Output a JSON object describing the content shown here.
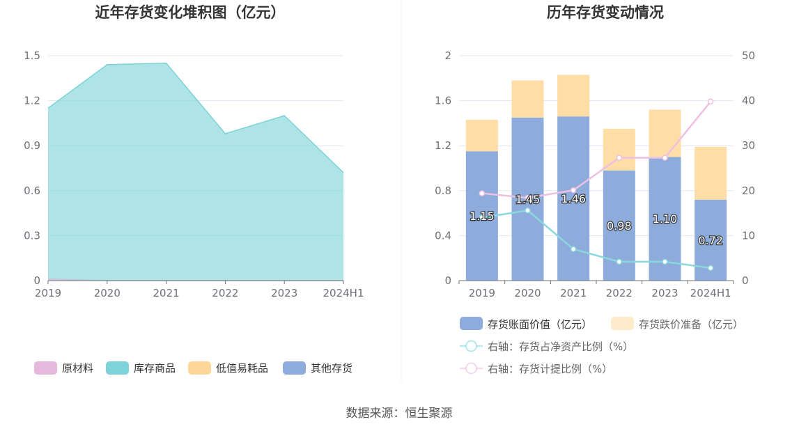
{
  "source_text": "数据来源：恒生聚源",
  "colors": {
    "raw": "#e6b9dc",
    "finished": "#7dd3d7",
    "consumable": "#fdd798",
    "other": "#8dacdb",
    "book": "#8dacdb",
    "reserve": "#fedea6",
    "line_net": "#8ad8dc",
    "line_ratio": "#edc0e3",
    "grid": "#e0e6f1",
    "axis": "#6e7079"
  },
  "chart_data": [
    {
      "type": "area",
      "title": "近年存货变化堆积图（亿元）",
      "categories": [
        "2019",
        "2020",
        "2021",
        "2022",
        "2023",
        "2024H1"
      ],
      "ylim": [
        0,
        1.5
      ],
      "yticks": [
        "0",
        "0.3",
        "0.6",
        "0.9",
        "1.2",
        "1.5"
      ],
      "series": [
        {
          "name": "原材料",
          "values": [
            0.01,
            0.0,
            0.0,
            0.0,
            0.0,
            0.0
          ]
        },
        {
          "name": "库存商品",
          "values": [
            1.14,
            1.44,
            1.45,
            0.98,
            1.1,
            0.72
          ]
        },
        {
          "name": "低值易耗品",
          "values": [
            0,
            0,
            0,
            0,
            0,
            0
          ]
        },
        {
          "name": "其他存货",
          "values": [
            0,
            0,
            0,
            0,
            0,
            0
          ]
        }
      ],
      "legend": [
        "原材料",
        "库存商品",
        "低值易耗品",
        "其他存货"
      ],
      "grid": true,
      "legend_position": "bottom"
    },
    {
      "type": "bar",
      "title": "历年存货变动情况",
      "categories": [
        "2019",
        "2020",
        "2021",
        "2022",
        "2023",
        "2024H1"
      ],
      "ylim": [
        0,
        2
      ],
      "yticks": [
        "0",
        "0.4",
        "0.8",
        "1.2",
        "1.6",
        "2"
      ],
      "y2lim": [
        0,
        50
      ],
      "y2ticks": [
        "0",
        "10",
        "20",
        "30",
        "40",
        "50"
      ],
      "series": [
        {
          "name": "存货账面价值（亿元）",
          "type": "bar",
          "values": [
            1.15,
            1.45,
            1.46,
            0.98,
            1.1,
            0.72
          ],
          "labels": [
            "1.15",
            "1.45",
            "1.46",
            "0.98",
            "1.10",
            "0.72"
          ]
        },
        {
          "name": "存货跌价准备（亿元）",
          "type": "bar",
          "values": [
            0.28,
            0.33,
            0.37,
            0.37,
            0.42,
            0.47
          ]
        },
        {
          "name": "右轴：存货占净资产比例（%）",
          "type": "line",
          "axis": "right",
          "values": [
            14.0,
            15.6,
            7.0,
            4.2,
            4.2,
            2.8
          ]
        },
        {
          "name": "右轴：存货计提比例（%）",
          "type": "line",
          "axis": "right",
          "values": [
            19.4,
            18.4,
            20.1,
            27.3,
            27.3,
            39.8
          ]
        }
      ],
      "grid": true,
      "legend_position": "bottom"
    }
  ]
}
